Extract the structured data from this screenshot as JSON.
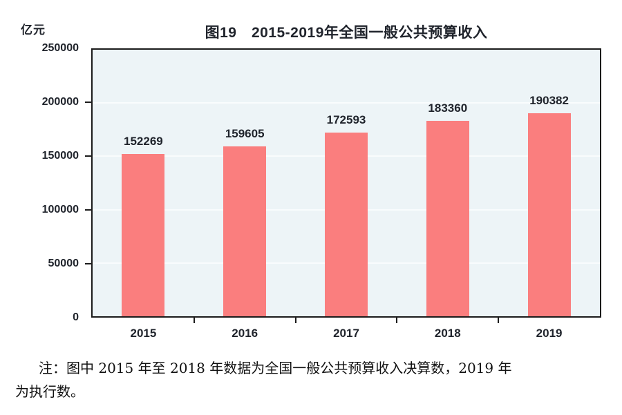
{
  "chart": {
    "unit_label": "亿元",
    "title": "图19　2015-2019年全国一般公共预算收入",
    "colors": {
      "bar": "#fa7e7e",
      "plot_background": "#edf4f7",
      "gridline": "#f9fcfd",
      "axis_border": "#1b1b1b",
      "text": "#20242c"
    }
  },
  "chart_data": {
    "type": "bar",
    "title": "图19　2015-2019年全国一般公共预算收入",
    "ylabel": "亿元",
    "xlabel": "",
    "categories": [
      "2015",
      "2016",
      "2017",
      "2018",
      "2019"
    ],
    "values": [
      152269,
      159605,
      172593,
      183360,
      190382
    ],
    "ylim": [
      0,
      250000
    ],
    "yticks": [
      0,
      50000,
      100000,
      150000,
      200000,
      250000
    ],
    "grid": true,
    "legend": false,
    "bar_color": "#fa7e7e",
    "data_labels": [
      "152269",
      "159605",
      "172593",
      "183360",
      "190382"
    ]
  },
  "note": {
    "line1": "注：图中 2015 年至 2018 年数据为全国一般公共预算收入决算数，2019 年",
    "line2": "为执行数。"
  }
}
